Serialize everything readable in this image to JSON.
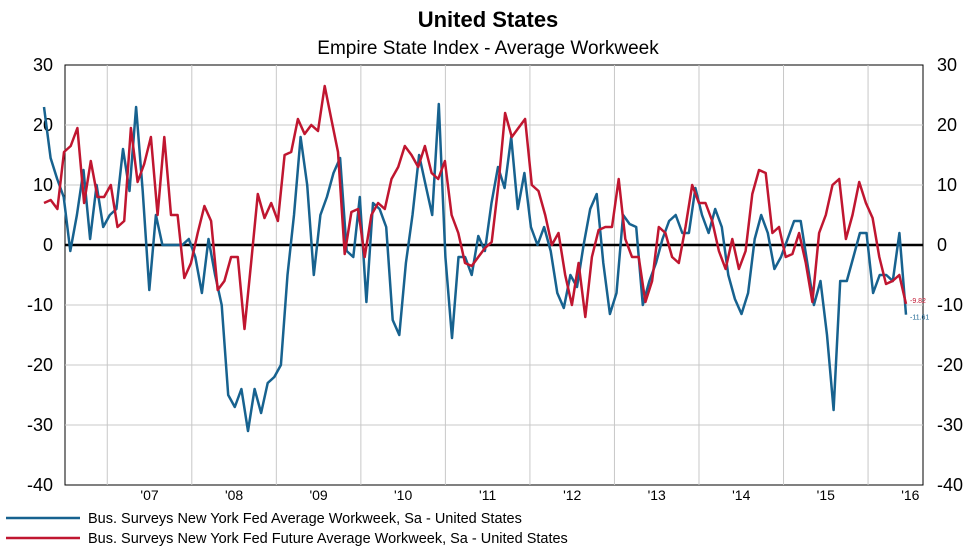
{
  "chart_data": {
    "type": "line",
    "title": "United States",
    "subtitle": "Empire State Index - Average Workweek",
    "ylim": [
      -40,
      30
    ],
    "yticks": [
      30,
      20,
      10,
      0,
      -10,
      -20,
      -30,
      -40
    ],
    "x_start_year": 2006.5,
    "x_end_year": 2016.65,
    "x_tick_labels": [
      {
        "label": "'07",
        "year": 2007
      },
      {
        "label": "'08",
        "year": 2008
      },
      {
        "label": "'09",
        "year": 2009
      },
      {
        "label": "'10",
        "year": 2010
      },
      {
        "label": "'11",
        "year": 2011
      },
      {
        "label": "'12",
        "year": 2012
      },
      {
        "label": "'13",
        "year": 2013
      },
      {
        "label": "'14",
        "year": 2014
      },
      {
        "label": "'15",
        "year": 2015
      },
      {
        "label": "'16",
        "year": 2016
      }
    ],
    "grid": true,
    "legend_position": "bottom",
    "series": [
      {
        "name": "Bus. Surveys New York Fed Average Workweek, Sa - United States",
        "color": "#17628f",
        "end_label": "-11.61",
        "values": [
          23,
          14.5,
          11,
          8,
          -1,
          5,
          12.5,
          1,
          10,
          3,
          5,
          6,
          16,
          9,
          23,
          9,
          -7.5,
          5,
          0,
          0,
          0,
          0,
          1,
          -2,
          -8,
          1,
          -5,
          -10,
          -25,
          -27,
          -24,
          -31,
          -24,
          -28,
          -23,
          -22,
          -20,
          -5,
          5,
          18,
          10,
          -5,
          5,
          8,
          12,
          14.5,
          -1,
          -2,
          8,
          -9.5,
          7,
          6,
          3,
          -12.5,
          -15,
          -3,
          5,
          15,
          10,
          5,
          23.5,
          -2,
          -15.5,
          -2,
          -2,
          -5,
          1.5,
          -1,
          7,
          13,
          9.5,
          18,
          6,
          12,
          3,
          0,
          3,
          -1,
          -8,
          -10.5,
          -5,
          -7,
          0,
          6,
          8.5,
          -3,
          -11.5,
          -8,
          5,
          3.5,
          3,
          -10,
          -6,
          -3,
          1,
          4,
          5,
          2,
          2,
          9.5,
          5,
          2,
          6,
          3,
          -5,
          -9,
          -11.5,
          -8,
          1,
          5,
          2,
          -4,
          -2,
          1,
          4,
          4,
          -3,
          -10,
          -6,
          -15,
          -27.5,
          -6,
          -6,
          -2,
          2,
          2,
          -8,
          -5,
          -5,
          -6,
          2,
          -11.61
        ]
      },
      {
        "name": "Bus. Surveys New York Fed Future Average Workweek, Sa - United States",
        "color": "#c01630",
        "end_label": "-9.82",
        "values": [
          7,
          7.5,
          6,
          15.5,
          16.5,
          19.5,
          7,
          14,
          8,
          8,
          10,
          3,
          4,
          19.5,
          10.5,
          13.5,
          18,
          5,
          18,
          5,
          5,
          -5.5,
          -3,
          2,
          6.5,
          4,
          -7.5,
          -6,
          -2,
          -2,
          -14,
          -3,
          8.5,
          4.5,
          7,
          4,
          15,
          15.5,
          21,
          18.5,
          20,
          19,
          26.5,
          21,
          15.5,
          -1.5,
          5.5,
          6,
          -2,
          5,
          7,
          6,
          11,
          13,
          16.5,
          15,
          13,
          16.5,
          12,
          11,
          14,
          5,
          2,
          -3,
          -3.5,
          -2,
          -0.5,
          0.5,
          10,
          22,
          18,
          19.5,
          21,
          10,
          9,
          5,
          0,
          2,
          -5,
          -10,
          -3,
          -12,
          -2,
          2.5,
          3,
          3,
          11,
          1,
          -2,
          -2,
          -9.5,
          -6,
          3,
          2,
          -2,
          -3,
          3,
          10,
          7,
          7,
          4,
          -1,
          -4,
          1,
          -4,
          -1,
          8.5,
          12.5,
          12,
          2,
          3,
          -2,
          -1.5,
          2,
          -3,
          -9.5,
          2,
          5,
          10,
          11,
          1,
          5,
          10.5,
          7,
          4.5,
          -2,
          -6.5,
          -6,
          -5,
          -9.82
        ]
      }
    ]
  }
}
